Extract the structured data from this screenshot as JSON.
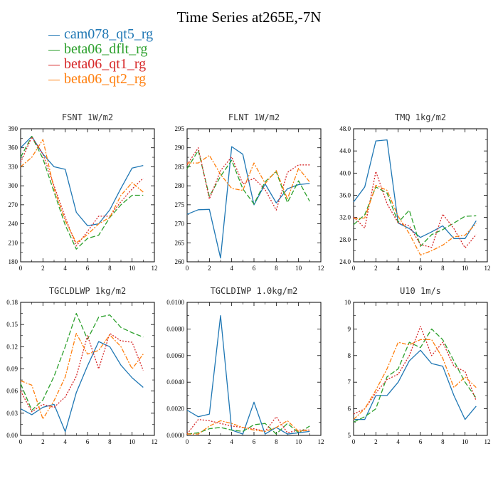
{
  "title": "Time Series at265E,-7N",
  "legend": [
    {
      "label": "cam078_qt5_rg",
      "color": "#1f77b4"
    },
    {
      "label": "beta06_dflt_rg",
      "color": "#2ca02c"
    },
    {
      "label": "beta06_qt1_rg",
      "color": "#d62728"
    },
    {
      "label": "beta06_qt2_rg",
      "color": "#ff7f0e"
    }
  ],
  "chart_data": [
    {
      "type": "line",
      "title": "FSNT  1W/m2",
      "x": [
        0,
        1,
        2,
        3,
        4,
        5,
        6,
        7,
        8,
        9,
        10,
        11
      ],
      "xlim": [
        0,
        12
      ],
      "xticks": [
        "0",
        "2",
        "4",
        "6",
        "8",
        "10",
        "12"
      ],
      "ylim": [
        180,
        390
      ],
      "yticks": [
        "180",
        "210",
        "240",
        "270",
        "300",
        "330",
        "360",
        "390"
      ],
      "series": [
        {
          "name": "cam078_qt5_rg",
          "values": [
            360,
            378,
            350,
            330,
            326,
            258,
            237,
            240,
            262,
            296,
            328,
            332
          ]
        },
        {
          "name": "beta06_dflt_rg",
          "values": [
            345,
            378,
            343,
            290,
            238,
            200,
            217,
            222,
            250,
            270,
            285,
            285
          ]
        },
        {
          "name": "beta06_qt1_rg",
          "values": [
            337,
            377,
            350,
            300,
            250,
            205,
            228,
            252,
            252,
            275,
            295,
            312
          ]
        },
        {
          "name": "beta06_qt2_rg",
          "values": [
            330,
            345,
            373,
            295,
            245,
            210,
            223,
            240,
            250,
            285,
            305,
            290
          ]
        }
      ]
    },
    {
      "type": "line",
      "title": "FLNT  1W/m2",
      "x": [
        0,
        1,
        2,
        3,
        4,
        5,
        6,
        7,
        8,
        9,
        10,
        11
      ],
      "xlim": [
        0,
        12
      ],
      "xticks": [
        "0",
        "2",
        "4",
        "6",
        "8",
        "10",
        "12"
      ],
      "ylim": [
        260,
        295
      ],
      "yticks": [
        "260",
        "265",
        "270",
        "275",
        "280",
        "285",
        "290",
        "295"
      ],
      "series": [
        {
          "name": "cam078_qt5_rg",
          "values": [
            272.5,
            273.7,
            273.8,
            261,
            290.3,
            288.3,
            275,
            280.5,
            275.5,
            279.2,
            280.3,
            280.6
          ]
        },
        {
          "name": "beta06_dflt_rg",
          "values": [
            284.5,
            289.3,
            277.2,
            282.5,
            286.7,
            279.2,
            275.2,
            281.1,
            283.7,
            275.6,
            281.3,
            275.9
          ]
        },
        {
          "name": "beta06_qt1_rg",
          "values": [
            285.5,
            290,
            276.5,
            284,
            287.6,
            280.5,
            282,
            279,
            273.6,
            283.5,
            285.5,
            285.5
          ]
        },
        {
          "name": "beta06_qt2_rg",
          "values": [
            286,
            286,
            288,
            283,
            279.3,
            278.8,
            286,
            280.6,
            284,
            276.5,
            284.6,
            281
          ]
        }
      ]
    },
    {
      "type": "line",
      "title": "TMQ  1kg/m2",
      "x": [
        0,
        1,
        2,
        3,
        4,
        5,
        6,
        7,
        8,
        9,
        10,
        11
      ],
      "xlim": [
        0,
        12
      ],
      "xticks": [
        "0",
        "2",
        "4",
        "6",
        "8",
        "10",
        "12"
      ],
      "ylim": [
        24,
        48
      ],
      "yticks": [
        "24.0",
        "28.0",
        "32.0",
        "36.0",
        "40.0",
        "44.0",
        "48.0"
      ],
      "series": [
        {
          "name": "cam078_qt5_rg",
          "values": [
            34.8,
            37.5,
            45.8,
            46,
            31,
            30,
            28.4,
            29.4,
            30.5,
            28.2,
            28.2,
            31.4
          ]
        },
        {
          "name": "beta06_dflt_rg",
          "values": [
            30.7,
            32.5,
            37.5,
            36.4,
            31.1,
            33.3,
            26.8,
            28.9,
            29.8,
            31,
            32.2,
            32.3
          ]
        },
        {
          "name": "beta06_qt1_rg",
          "values": [
            32.1,
            30.1,
            40.3,
            34.5,
            31,
            30.5,
            27.1,
            26.6,
            32.6,
            30,
            26.5,
            28.9
          ]
        },
        {
          "name": "beta06_qt2_rg",
          "values": [
            31.8,
            31.9,
            37.8,
            36.9,
            32.2,
            29.1,
            25.2,
            26,
            27,
            28.5,
            28.8,
            30.9
          ]
        }
      ]
    },
    {
      "type": "line",
      "title": "TGCLDLWP  1kg/m2",
      "x": [
        0,
        1,
        2,
        3,
        4,
        5,
        6,
        7,
        8,
        9,
        10,
        11
      ],
      "xlim": [
        0,
        12
      ],
      "xticks": [
        "0",
        "2",
        "4",
        "6",
        "8",
        "10",
        "12"
      ],
      "ylim": [
        0,
        0.18
      ],
      "yticks": [
        "0.00",
        "0.03",
        "0.06",
        "0.09",
        "0.12",
        "0.15",
        "0.18"
      ],
      "series": [
        {
          "name": "cam078_qt5_rg",
          "values": [
            0.036,
            0.028,
            0.038,
            0.042,
            0.005,
            0.058,
            0.094,
            0.127,
            0.12,
            0.095,
            0.078,
            0.065
          ]
        },
        {
          "name": "beta06_dflt_rg",
          "values": [
            0.07,
            0.034,
            0.048,
            0.08,
            0.12,
            0.165,
            0.13,
            0.16,
            0.163,
            0.146,
            0.139,
            0.133
          ]
        },
        {
          "name": "beta06_qt1_rg",
          "values": [
            0.06,
            0.032,
            0.042,
            0.038,
            0.052,
            0.08,
            0.135,
            0.09,
            0.138,
            0.128,
            0.126,
            0.088
          ]
        },
        {
          "name": "beta06_qt2_rg",
          "values": [
            0.074,
            0.068,
            0.022,
            0.047,
            0.079,
            0.138,
            0.11,
            0.115,
            0.136,
            0.12,
            0.09,
            0.11
          ]
        }
      ]
    },
    {
      "type": "line",
      "title": "TGCLDIWP  1.0kg/m2",
      "x": [
        0,
        1,
        2,
        3,
        4,
        5,
        6,
        7,
        8,
        9,
        10,
        11
      ],
      "xlim": [
        0,
        12
      ],
      "xticks": [
        "0",
        "2",
        "4",
        "6",
        "8",
        "10",
        "12"
      ],
      "ylim": [
        0,
        0.01
      ],
      "yticks": [
        "0.0000",
        "0.0020",
        "0.0040",
        "0.0060",
        "0.0080",
        "0.0100"
      ],
      "series": [
        {
          "name": "cam078_qt5_rg",
          "values": [
            0.0019,
            0.0014,
            0.0016,
            0.009,
            0.0004,
            0.0001,
            0.0025,
            0.0001,
            0.0006,
            0.0001,
            0.0002,
            0.0003
          ]
        },
        {
          "name": "beta06_dflt_rg",
          "values": [
            0.0001,
            0.0002,
            0.0005,
            0.0006,
            0.0004,
            0.0003,
            0.0008,
            0.0009,
            0.0001,
            0.0009,
            0.0002,
            0.0007
          ]
        },
        {
          "name": "beta06_qt1_rg",
          "values": [
            0.0001,
            0.0012,
            0.0011,
            0.0009,
            0.0007,
            0.0006,
            0.0005,
            0.0003,
            0.0014,
            0.0002,
            0.0004,
            0.0004
          ]
        },
        {
          "name": "beta06_qt2_rg",
          "values": [
            0.0001,
            0.0001,
            0.0007,
            0.0011,
            0.0009,
            0.0006,
            0.0004,
            0.0003,
            0.0006,
            0.0011,
            0.0003,
            0.0004
          ]
        }
      ]
    },
    {
      "type": "line",
      "title": "U10  1m/s",
      "x": [
        0,
        1,
        2,
        3,
        4,
        5,
        6,
        7,
        8,
        9,
        10,
        11
      ],
      "xlim": [
        0,
        12
      ],
      "xticks": [
        "0",
        "2",
        "4",
        "6",
        "8",
        "10",
        "12"
      ],
      "ylim": [
        5,
        10
      ],
      "yticks": [
        "5",
        "6",
        "7",
        "8",
        "9",
        "10"
      ],
      "series": [
        {
          "name": "cam078_qt5_rg",
          "values": [
            5.6,
            5.6,
            6.5,
            6.5,
            7,
            7.8,
            8.2,
            7.7,
            7.6,
            6.5,
            5.6,
            6.1
          ]
        },
        {
          "name": "beta06_dflt_rg",
          "values": [
            5.5,
            5.7,
            6.0,
            7.2,
            7.5,
            8.5,
            8.3,
            9.0,
            8.6,
            7.8,
            7.0,
            6.4
          ]
        },
        {
          "name": "beta06_qt1_rg",
          "values": [
            5.8,
            6.0,
            6.6,
            7.1,
            7.3,
            8.0,
            9.1,
            8.0,
            8.5,
            7.6,
            7.4,
            6.3
          ]
        },
        {
          "name": "beta06_qt2_rg",
          "values": [
            5.6,
            6.0,
            6.7,
            7.5,
            8.5,
            8.4,
            8.6,
            8.6,
            7.9,
            6.8,
            7.2,
            6.8
          ]
        }
      ]
    }
  ]
}
